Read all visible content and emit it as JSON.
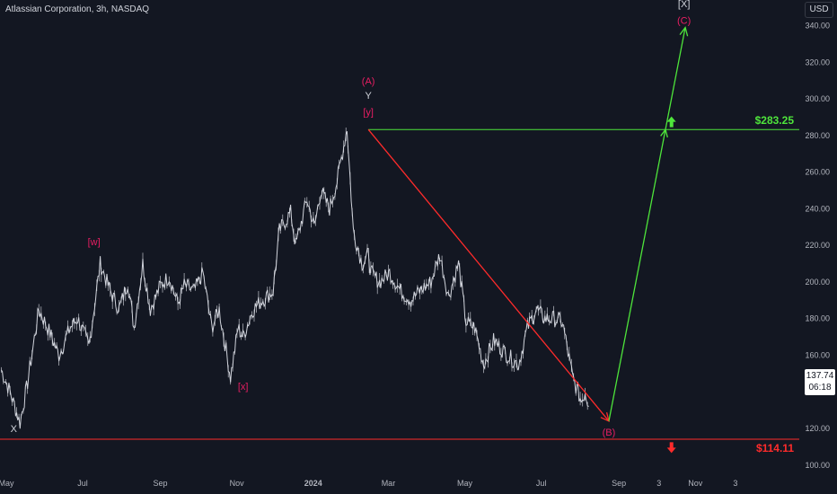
{
  "header": {
    "symbol_title": "Atlassian Corporation, 3h, NASDAQ",
    "currency_button": "USD"
  },
  "last_price": {
    "value": "137.74",
    "countdown": "06:18"
  },
  "colors": {
    "background": "#131722",
    "candles": "#d1d4dc",
    "bullish": "#4ee53b",
    "bearish": "#ff2b2b",
    "wave_label": "#e91e63",
    "wave_label_white": "#d1d4dc"
  },
  "chart_data": {
    "type": "line",
    "x_tick_labels": [
      "May",
      "Jul",
      "Sep",
      "Nov",
      "2024",
      "Mar",
      "May",
      "Jul",
      "Sep",
      "3",
      "Nov",
      "3"
    ],
    "y_tick_labels": [
      "100.00",
      "120.00",
      "140.00",
      "160.00",
      "180.00",
      "200.00",
      "220.00",
      "240.00",
      "260.00",
      "280.00",
      "300.00",
      "320.00",
      "340.00"
    ],
    "ylim": [
      94,
      354
    ],
    "grid": false,
    "x_timeline": {
      "start": "2023-04-26",
      "end": "2025-01-23"
    },
    "price_series": {
      "dates": [
        "2023-04-27",
        "2023-05-04",
        "2023-05-12",
        "2023-05-18",
        "2023-05-27",
        "2023-06-05",
        "2023-06-12",
        "2023-06-21",
        "2023-06-27",
        "2023-07-06",
        "2023-07-15",
        "2023-07-23",
        "2023-07-30",
        "2023-08-06",
        "2023-08-11",
        "2023-08-18",
        "2023-08-24",
        "2023-09-01",
        "2023-09-08",
        "2023-09-15",
        "2023-09-20",
        "2023-09-28",
        "2023-10-05",
        "2023-10-12",
        "2023-10-18",
        "2023-10-27",
        "2023-11-02",
        "2023-11-06",
        "2023-11-14",
        "2023-11-21",
        "2023-11-30",
        "2023-12-05",
        "2023-12-14",
        "2023-12-18",
        "2023-12-27",
        "2024-01-02",
        "2024-01-07",
        "2024-01-14",
        "2024-01-20",
        "2024-01-28",
        "2024-02-02",
        "2024-02-09",
        "2024-02-14",
        "2024-02-16",
        "2024-02-23",
        "2024-03-02",
        "2024-03-11",
        "2024-03-19",
        "2024-03-26",
        "2024-04-04",
        "2024-04-11",
        "2024-04-18",
        "2024-04-26",
        "2024-05-02",
        "2024-05-09",
        "2024-05-16",
        "2024-05-24",
        "2024-06-04",
        "2024-06-13",
        "2024-06-20",
        "2024-06-27",
        "2024-07-04",
        "2024-07-11",
        "2024-07-18",
        "2024-07-26",
        "2024-08-02",
        "2024-08-05",
        "2024-08-08"
      ],
      "values": [
        152,
        140,
        123,
        145,
        185,
        172,
        160,
        175,
        180,
        165,
        210,
        195,
        185,
        200,
        175,
        210,
        185,
        198,
        203,
        188,
        198,
        195,
        205,
        175,
        185,
        148,
        175,
        170,
        185,
        190,
        195,
        228,
        238,
        220,
        245,
        230,
        250,
        240,
        255,
        284,
        228,
        210,
        215,
        205,
        200,
        205,
        195,
        190,
        195,
        200,
        215,
        192,
        210,
        178,
        175,
        155,
        168,
        160,
        155,
        175,
        185,
        180,
        180,
        178,
        148,
        135,
        140,
        132
      ]
    },
    "wave_labels": [
      {
        "text": "X",
        "date": "2023-05-07",
        "value": 118,
        "color": "white"
      },
      {
        "text": "[w]",
        "date": "2023-07-10",
        "value": 220,
        "color": "wave"
      },
      {
        "text": "[x]",
        "date": "2023-11-06",
        "value": 141,
        "color": "wave"
      },
      {
        "text": "(A)",
        "date": "2024-02-14",
        "value": 308,
        "color": "wave"
      },
      {
        "text": "Y",
        "date": "2024-02-14",
        "value": 300,
        "color": "white"
      },
      {
        "text": "[y]",
        "date": "2024-02-14",
        "value": 291,
        "color": "wave"
      },
      {
        "text": "(B)",
        "date": "2024-08-24",
        "value": 116,
        "color": "wave"
      },
      {
        "text": "[X]",
        "date": "2024-10-23",
        "value": 350,
        "color": "white"
      },
      {
        "text": "(C)",
        "date": "2024-10-23",
        "value": 341,
        "color": "wave"
      }
    ],
    "levels": [
      {
        "label": "$283.25",
        "value": 283.25,
        "start": "2024-02-14",
        "color": "bullish"
      },
      {
        "label": "$114.11",
        "value": 114.11,
        "start": "2023-04-26",
        "color": "bearish"
      }
    ],
    "projection_lines": [
      {
        "from": {
          "date": "2024-02-14",
          "value": 283.25
        },
        "to": {
          "date": "2024-08-24",
          "value": 124
        },
        "color": "bearish"
      },
      {
        "from": {
          "date": "2024-08-24",
          "value": 124
        },
        "to": {
          "date": "2024-10-24",
          "value": 339
        },
        "color": "bullish"
      }
    ],
    "markers": [
      {
        "type": "arrow-up",
        "date": "2024-10-13",
        "value": 287,
        "color": "bullish"
      },
      {
        "type": "arrow-down",
        "date": "2024-10-13",
        "value": 110,
        "color": "bearish"
      }
    ]
  }
}
